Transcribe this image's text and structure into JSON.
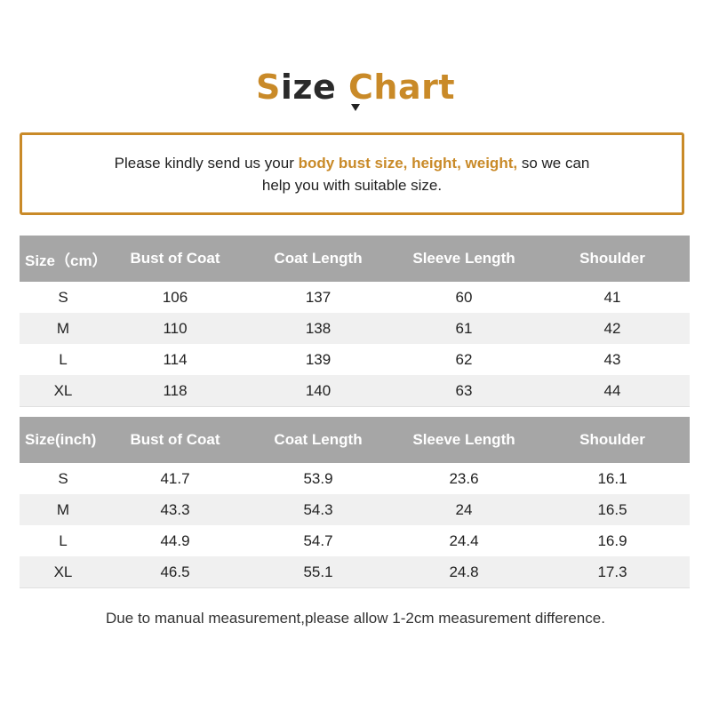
{
  "title": {
    "part1": "S",
    "part2": "ize",
    "part3": "Chart"
  },
  "notice": {
    "before": "Please kindly send us your ",
    "highlight": "body bust size, height, weight,",
    "after": " so we can",
    "line2": "help you with suitable size."
  },
  "cm_table": {
    "headers": [
      "Size（cm）",
      "Bust of Coat",
      "Coat Length",
      "Sleeve Length",
      "Shoulder"
    ],
    "rows": [
      [
        "S",
        "106",
        "137",
        "60",
        "41"
      ],
      [
        "M",
        "110",
        "138",
        "61",
        "42"
      ],
      [
        "L",
        "114",
        "139",
        "62",
        "43"
      ],
      [
        "XL",
        "118",
        "140",
        "63",
        "44"
      ]
    ]
  },
  "inch_table": {
    "headers": [
      "Size(inch)",
      "Bust of Coat",
      "Coat Length",
      "Sleeve Length",
      "Shoulder"
    ],
    "rows": [
      [
        "S",
        "41.7",
        "53.9",
        "23.6",
        "16.1"
      ],
      [
        "M",
        "43.3",
        "54.3",
        "24",
        "16.5"
      ],
      [
        "L",
        "44.9",
        "54.7",
        "24.4",
        "16.9"
      ],
      [
        "XL",
        "46.5",
        "55.1",
        "24.8",
        "17.3"
      ]
    ]
  },
  "footer": "Due to manual measurement,please allow 1-2cm measurement difference."
}
